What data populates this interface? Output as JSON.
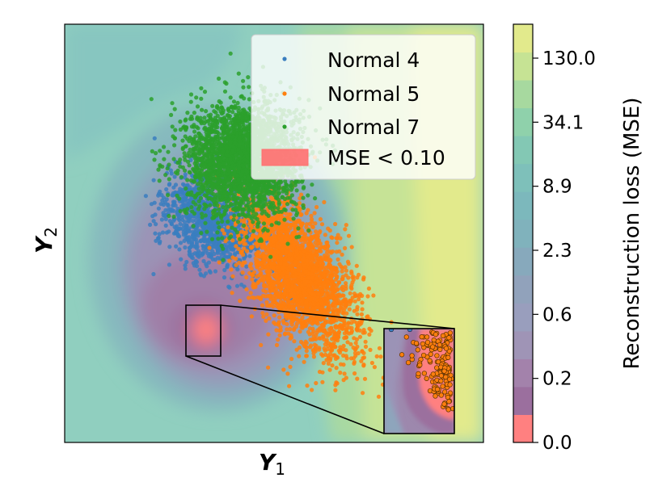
{
  "chart_data": {
    "type": "scatter",
    "title": "",
    "xlabel": "Y",
    "xlabel_sub": "1",
    "ylabel": "Y",
    "ylabel_sub": "2",
    "x_ticks_shown": false,
    "y_ticks_shown": false,
    "background": "contour map of reconstruction loss (MSE) over the latent space",
    "series": [
      {
        "name": "Normal 4",
        "color": "#3a7ebf",
        "center": [
          -0.3,
          0.05
        ],
        "spread": [
          0.2,
          0.3
        ],
        "note": "dense cloud, partly occluded"
      },
      {
        "name": "Normal 5",
        "color": "#ff7f0e",
        "center": [
          0.12,
          -0.2
        ],
        "spread": [
          0.22,
          0.45
        ],
        "note": "elongated diagonal cloud"
      },
      {
        "name": "Normal 7",
        "color": "#2ca02c",
        "center": [
          -0.15,
          0.35
        ],
        "spread": [
          0.3,
          0.3
        ],
        "note": "roughly circular cloud"
      }
    ],
    "region": {
      "name": "MSE < 0.10",
      "color": "#ff6f6f"
    },
    "legend": {
      "entries": [
        "Normal 4",
        "Normal 5",
        "Normal 7",
        "MSE < 0.10"
      ],
      "location": "top-right"
    },
    "colorbar": {
      "label": "Reconstruction loss (MSE)",
      "scale": "log",
      "ticks": [
        "0.0",
        "0.2",
        "0.6",
        "2.3",
        "8.9",
        "34.1",
        "130.0"
      ],
      "colors": [
        "#ff8080",
        "#9b6f9e",
        "#a382ab",
        "#9f94b6",
        "#999ebd",
        "#91a2bb",
        "#87a9bc",
        "#80b2bc",
        "#7cb8bc",
        "#7ec0ba",
        "#83c8b4",
        "#8fd1ab",
        "#a7d99f",
        "#c6e394",
        "#e2ea8c"
      ]
    },
    "inset": {
      "type": "zoom",
      "source_location": "lower-left of Normal 5 cloud",
      "placement": "bottom-right"
    }
  }
}
